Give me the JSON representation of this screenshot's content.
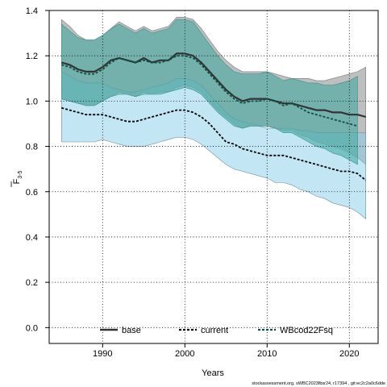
{
  "chart_data": {
    "type": "line",
    "xlabel": "Years",
    "ylabel": "F",
    "ylabel_subscript": "3-5",
    "xlim": [
      1983.5,
      2023.5
    ],
    "ylim": [
      -0.07,
      1.4
    ],
    "xticks": [
      "1990",
      "2000",
      "2010",
      "2020"
    ],
    "yticks": [
      "0.0",
      "0.2",
      "0.4",
      "0.6",
      "0.8",
      "1.0",
      "1.2",
      "1.4"
    ],
    "grid": true,
    "legend_position": "bottom",
    "series": [
      {
        "name": "base",
        "color": "#000000",
        "band_color": "#8a8a8a",
        "line_style": "solid",
        "x": [
          1985,
          1986,
          1987,
          1988,
          1989,
          1990,
          1991,
          1992,
          1993,
          1994,
          1995,
          1996,
          1997,
          1998,
          1999,
          2000,
          2001,
          2002,
          2003,
          2004,
          2005,
          2006,
          2007,
          2008,
          2009,
          2010,
          2011,
          2012,
          2013,
          2014,
          2015,
          2016,
          2017,
          2018,
          2019,
          2020,
          2021,
          2022
        ],
        "y": [
          1.17,
          1.16,
          1.14,
          1.13,
          1.13,
          1.15,
          1.18,
          1.19,
          1.18,
          1.17,
          1.19,
          1.17,
          1.18,
          1.18,
          1.21,
          1.21,
          1.2,
          1.17,
          1.13,
          1.09,
          1.05,
          1.02,
          1.0,
          1.01,
          1.01,
          1.01,
          1.0,
          0.99,
          0.99,
          0.98,
          0.97,
          0.96,
          0.96,
          0.95,
          0.95,
          0.94,
          0.94,
          0.93
        ],
        "lower": [
          1.01,
          1.0,
          0.99,
          0.98,
          0.98,
          1.0,
          1.02,
          1.04,
          1.03,
          1.02,
          1.04,
          1.03,
          1.04,
          1.04,
          1.06,
          1.07,
          1.06,
          1.04,
          1.0,
          0.96,
          0.93,
          0.9,
          0.88,
          0.89,
          0.89,
          0.89,
          0.88,
          0.87,
          0.87,
          0.85,
          0.84,
          0.82,
          0.81,
          0.8,
          0.79,
          0.77,
          0.75,
          0.72
        ],
        "upper": [
          1.36,
          1.33,
          1.29,
          1.27,
          1.27,
          1.29,
          1.32,
          1.35,
          1.33,
          1.31,
          1.33,
          1.31,
          1.32,
          1.33,
          1.37,
          1.37,
          1.36,
          1.32,
          1.27,
          1.22,
          1.18,
          1.15,
          1.13,
          1.13,
          1.13,
          1.13,
          1.12,
          1.11,
          1.1,
          1.1,
          1.1,
          1.09,
          1.09,
          1.1,
          1.11,
          1.12,
          1.13,
          1.15
        ]
      },
      {
        "name": "current",
        "color": "#000000",
        "band_color": "#87ceeb",
        "line_style": "dashed",
        "x": [
          1985,
          1986,
          1987,
          1988,
          1989,
          1990,
          1991,
          1992,
          1993,
          1994,
          1995,
          1996,
          1997,
          1998,
          1999,
          2000,
          2001,
          2002,
          2003,
          2004,
          2005,
          2006,
          2007,
          2008,
          2009,
          2010,
          2011,
          2012,
          2013,
          2014,
          2015,
          2016,
          2017,
          2018,
          2019,
          2020,
          2021,
          2022
        ],
        "y": [
          0.97,
          0.96,
          0.95,
          0.94,
          0.94,
          0.94,
          0.93,
          0.92,
          0.91,
          0.91,
          0.92,
          0.93,
          0.94,
          0.95,
          0.96,
          0.96,
          0.95,
          0.93,
          0.9,
          0.86,
          0.82,
          0.81,
          0.79,
          0.78,
          0.77,
          0.76,
          0.76,
          0.76,
          0.75,
          0.74,
          0.73,
          0.72,
          0.71,
          0.7,
          0.69,
          0.69,
          0.68,
          0.65
        ],
        "lower": [
          0.82,
          0.82,
          0.82,
          0.82,
          0.82,
          0.83,
          0.82,
          0.81,
          0.8,
          0.8,
          0.8,
          0.81,
          0.82,
          0.83,
          0.84,
          0.84,
          0.83,
          0.81,
          0.78,
          0.75,
          0.72,
          0.7,
          0.69,
          0.68,
          0.67,
          0.66,
          0.64,
          0.64,
          0.63,
          0.61,
          0.6,
          0.58,
          0.57,
          0.55,
          0.54,
          0.53,
          0.51,
          0.48
        ],
        "upper": [
          1.13,
          1.11,
          1.09,
          1.08,
          1.08,
          1.08,
          1.06,
          1.05,
          1.04,
          1.04,
          1.05,
          1.06,
          1.07,
          1.08,
          1.1,
          1.1,
          1.09,
          1.07,
          1.03,
          0.99,
          0.95,
          0.92,
          0.91,
          0.9,
          0.89,
          0.88,
          0.88,
          0.88,
          0.88,
          0.87,
          0.87,
          0.86,
          0.86,
          0.86,
          0.86,
          0.86,
          0.86,
          0.86
        ]
      },
      {
        "name": "WBcod22Fsq",
        "color": "#0f4f46",
        "band_color": "#43a8a0",
        "line_style": "dashed",
        "x": [
          1985,
          1986,
          1987,
          1988,
          1989,
          1990,
          1991,
          1992,
          1993,
          1994,
          1995,
          1996,
          1997,
          1998,
          1999,
          2000,
          2001,
          2002,
          2003,
          2004,
          2005,
          2006,
          2007,
          2008,
          2009,
          2010,
          2011,
          2012,
          2013,
          2014,
          2015,
          2016,
          2017,
          2018,
          2019,
          2020,
          2021
        ],
        "y": [
          1.16,
          1.15,
          1.13,
          1.12,
          1.12,
          1.14,
          1.17,
          1.19,
          1.18,
          1.17,
          1.18,
          1.17,
          1.17,
          1.18,
          1.2,
          1.2,
          1.19,
          1.16,
          1.12,
          1.08,
          1.04,
          1.01,
          0.99,
          1.0,
          1.0,
          1.01,
          1.0,
          0.98,
          0.99,
          0.97,
          0.95,
          0.94,
          0.93,
          0.92,
          0.91,
          0.9,
          0.89
        ],
        "lower": [
          1.01,
          1.0,
          0.99,
          0.98,
          0.98,
          1.0,
          1.02,
          1.03,
          1.03,
          1.02,
          1.03,
          1.03,
          1.03,
          1.04,
          1.05,
          1.06,
          1.05,
          1.03,
          0.99,
          0.95,
          0.92,
          0.89,
          0.88,
          0.89,
          0.89,
          0.89,
          0.88,
          0.86,
          0.86,
          0.84,
          0.82,
          0.8,
          0.79,
          0.77,
          0.76,
          0.74,
          0.72
        ],
        "upper": [
          1.34,
          1.31,
          1.28,
          1.27,
          1.27,
          1.29,
          1.32,
          1.34,
          1.32,
          1.3,
          1.32,
          1.3,
          1.31,
          1.32,
          1.36,
          1.36,
          1.35,
          1.3,
          1.25,
          1.2,
          1.16,
          1.13,
          1.12,
          1.12,
          1.12,
          1.13,
          1.11,
          1.09,
          1.1,
          1.09,
          1.08,
          1.08,
          1.07,
          1.07,
          1.08,
          1.09,
          1.11
        ]
      }
    ]
  },
  "footnote": "stockassessment.org, sWBC2023fbsr24, r17394 , git:ec2c2a0c6dde"
}
